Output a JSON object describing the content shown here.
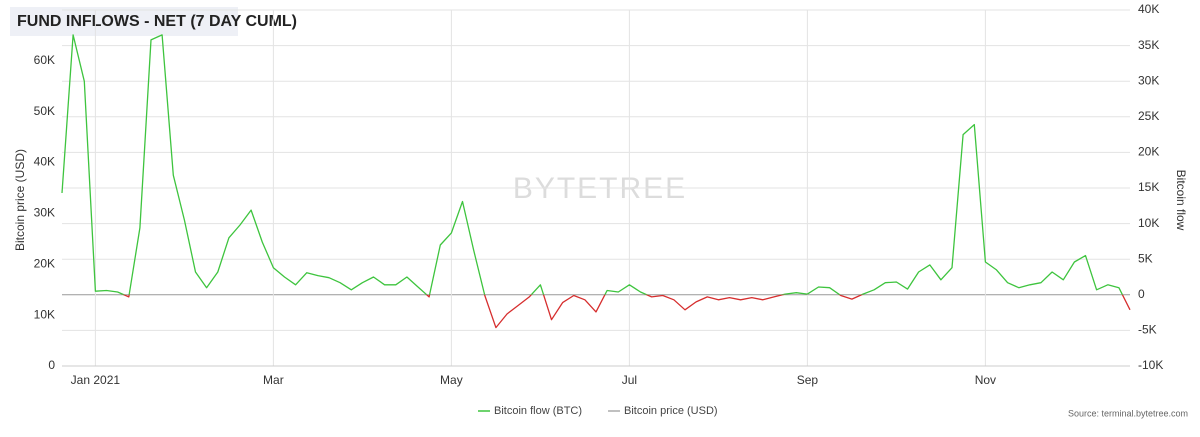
{
  "chart_data": {
    "type": "line",
    "title": "FUND INFLOWS - NET (7 DAY CUML)",
    "y_label": "Bitcoin price (USD)",
    "y2_label": "Bitcoin flow",
    "watermark": "BYTETREE",
    "source": "Source: terminal.bytetree.com",
    "categories": [
      null,
      null,
      null,
      "Jan 2021",
      null,
      null,
      null,
      null,
      null,
      null,
      null,
      null,
      null,
      null,
      null,
      null,
      null,
      null,
      null,
      "Mar",
      null,
      null,
      null,
      null,
      null,
      null,
      null,
      null,
      null,
      null,
      null,
      null,
      null,
      null,
      null,
      "May",
      null,
      null,
      null,
      null,
      null,
      null,
      null,
      null,
      null,
      null,
      null,
      null,
      null,
      null,
      null,
      "Jul",
      null,
      null,
      null,
      null,
      null,
      null,
      null,
      null,
      null,
      null,
      null,
      null,
      null,
      null,
      null,
      "Sep",
      null,
      null,
      null,
      null,
      null,
      null,
      null,
      null,
      null,
      null,
      null,
      null,
      null,
      null,
      null,
      "Nov",
      null,
      null,
      null,
      null,
      null,
      null,
      null,
      null,
      null,
      null,
      null,
      null,
      null
    ],
    "series": [
      {
        "name": "Bitcoin flow (BTC)",
        "color": "#3ec43e",
        "negative_color": "#d62e2e",
        "axis": "y2",
        "values": [
          14300,
          36500,
          30000,
          500,
          600,
          400,
          -300,
          9400,
          35800,
          36500,
          16800,
          10500,
          3200,
          1000,
          3200,
          8000,
          9800,
          11900,
          7400,
          3800,
          2500,
          1400,
          3100,
          2700,
          2400,
          1700,
          700,
          1700,
          2500,
          1400,
          1400,
          2500,
          1100,
          -300,
          7000,
          8700,
          13100,
          6300,
          -100,
          -4600,
          -2700,
          -1500,
          -300,
          1400,
          -3500,
          -1100,
          -100,
          -700,
          -2400,
          600,
          400,
          1400,
          400,
          -300,
          -100,
          -700,
          -2100,
          -1000,
          -300,
          -700,
          -400,
          -700,
          -400,
          -700,
          -300,
          100,
          300,
          100,
          1100,
          1000,
          -100,
          -600,
          100,
          700,
          1700,
          1800,
          800,
          3200,
          4200,
          2100,
          3800,
          22500,
          23900,
          4600,
          3500,
          1700,
          1000,
          1400,
          1700,
          3200,
          2100,
          4600,
          5500,
          700,
          1400,
          1000,
          -2100
        ]
      },
      {
        "name": "Bitcoin price (USD)",
        "color": "#aaaaaa"
      }
    ],
    "ylim": [
      0,
      70000
    ],
    "yticks": [
      0,
      {
        "value": 10000,
        "label": "10K"
      },
      {
        "value": 20000,
        "label": "20K"
      },
      {
        "value": 30000,
        "label": "30K"
      },
      {
        "value": 40000,
        "label": "40K"
      },
      {
        "value": 50000,
        "label": "50K"
      },
      {
        "value": 60000,
        "label": "60K"
      }
    ],
    "y2lim": [
      -10000,
      40000
    ],
    "y2ticks": [
      {
        "value": -10000,
        "label": "-10K"
      },
      {
        "value": -5000,
        "label": "-5K"
      },
      0,
      {
        "value": 5000,
        "label": "5K"
      },
      {
        "value": 10000,
        "label": "10K"
      },
      {
        "value": 15000,
        "label": "15K"
      },
      {
        "value": 20000,
        "label": "20K"
      },
      {
        "value": 25000,
        "label": "25K"
      },
      {
        "value": 30000,
        "label": "30K"
      },
      {
        "value": 35000,
        "label": "35K"
      },
      {
        "value": 40000,
        "label": "40K"
      }
    ],
    "grid": true
  }
}
